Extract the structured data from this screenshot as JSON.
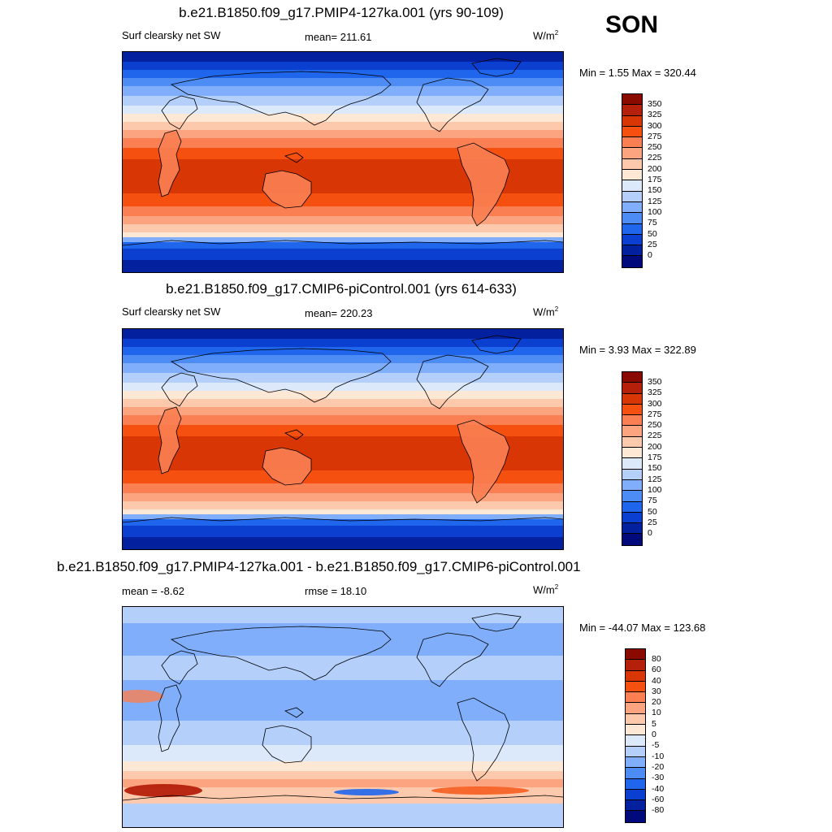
{
  "season": "SON",
  "panels": [
    {
      "title": "b.e21.B1850.f09_g17.PMIP4-127ka.001 (yrs 90-109)",
      "left_label": "Surf clearsky net SW",
      "center_label": "mean= 211.61",
      "units": "W/m",
      "units_exp": "2",
      "minmax": "Min =   1.55 Max = 320.44",
      "colorbar": {
        "labels": [
          "350",
          "325",
          "300",
          "275",
          "250",
          "225",
          "200",
          "175",
          "150",
          "125",
          "100",
          "75",
          "50",
          "25",
          "0"
        ],
        "colors": [
          "#8b0a00",
          "#b5200a",
          "#d93606",
          "#f5500f",
          "#fa7f52",
          "#fca37f",
          "#fdc9ad",
          "#fde8d6",
          "#dbe9fb",
          "#b3cffa",
          "#80aefb",
          "#4d8cf5",
          "#1f66ec",
          "#0a3fd0",
          "#03209e",
          "#010a7a"
        ]
      },
      "map_type": "abs"
    },
    {
      "title": "b.e21.B1850.f09_g17.CMIP6-piControl.001 (yrs 614-633)",
      "left_label": "Surf clearsky net SW",
      "center_label": "mean= 220.23",
      "units": "W/m",
      "units_exp": "2",
      "minmax": "Min =   3.93 Max = 322.89",
      "colorbar": {
        "labels": [
          "350",
          "325",
          "300",
          "275",
          "250",
          "225",
          "200",
          "175",
          "150",
          "125",
          "100",
          "75",
          "50",
          "25",
          "0"
        ],
        "colors": [
          "#8b0a00",
          "#b5200a",
          "#d93606",
          "#f5500f",
          "#fa7f52",
          "#fca37f",
          "#fdc9ad",
          "#fde8d6",
          "#dbe9fb",
          "#b3cffa",
          "#80aefb",
          "#4d8cf5",
          "#1f66ec",
          "#0a3fd0",
          "#03209e",
          "#010a7a"
        ]
      },
      "map_type": "abs"
    },
    {
      "title": "b.e21.B1850.f09_g17.PMIP4-127ka.001 - b.e21.B1850.f09_g17.CMIP6-piControl.001",
      "left_label": "mean =  -8.62",
      "center_label": "rmse =  18.10",
      "units": "W/m",
      "units_exp": "2",
      "minmax": "Min = -44.07 Max = 123.68",
      "colorbar": {
        "labels": [
          "80",
          "60",
          "40",
          "30",
          "20",
          "10",
          "5",
          "0",
          "-5",
          "-10",
          "-20",
          "-30",
          "-40",
          "-60",
          "-80"
        ],
        "colors": [
          "#8b0a00",
          "#b5200a",
          "#d93606",
          "#f5500f",
          "#fa7f52",
          "#fca37f",
          "#fdc9ad",
          "#fde8d6",
          "#dbe9fb",
          "#b3cffa",
          "#80aefb",
          "#4d8cf5",
          "#1f66ec",
          "#0a3fd0",
          "#03209e",
          "#010a7a"
        ]
      },
      "map_type": "diff"
    }
  ]
}
